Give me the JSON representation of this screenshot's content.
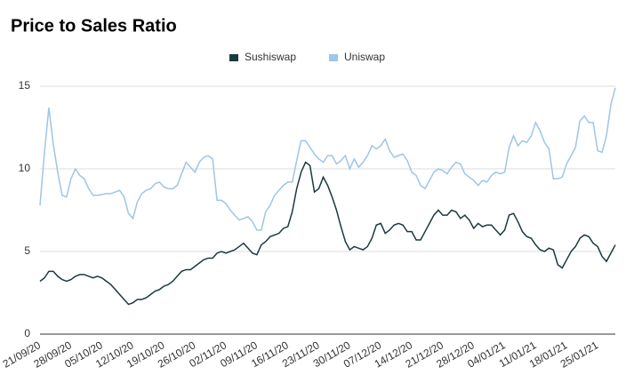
{
  "chart_data": {
    "type": "line",
    "title": "Price to Sales Ratio",
    "categories": [
      "21/09/20",
      null,
      null,
      null,
      null,
      null,
      null,
      "28/09/20",
      null,
      null,
      null,
      null,
      null,
      null,
      "05/10/20",
      null,
      null,
      null,
      null,
      null,
      null,
      "12/10/20",
      null,
      null,
      null,
      null,
      null,
      null,
      "19/10/20",
      null,
      null,
      null,
      null,
      null,
      null,
      "26/10/20",
      null,
      null,
      null,
      null,
      null,
      null,
      "02/11/20",
      null,
      null,
      null,
      null,
      null,
      null,
      "09/11/20",
      null,
      null,
      null,
      null,
      null,
      null,
      "16/11/20",
      null,
      null,
      null,
      null,
      null,
      null,
      "23/11/20",
      null,
      null,
      null,
      null,
      null,
      null,
      "30/11/20",
      null,
      null,
      null,
      null,
      null,
      null,
      "07/12/20",
      null,
      null,
      null,
      null,
      null,
      null,
      "14/12/20",
      null,
      null,
      null,
      null,
      null,
      null,
      "21/12/20",
      null,
      null,
      null,
      null,
      null,
      null,
      "28/12/20",
      null,
      null,
      null,
      null,
      null,
      null,
      "04/01/21",
      null,
      null,
      null,
      null,
      null,
      null,
      "11/01/21",
      null,
      null,
      null,
      null,
      null,
      null,
      "18/01/21",
      null,
      null,
      null,
      null,
      null,
      null,
      "25/01/21",
      null,
      null,
      null,
      null
    ],
    "series": [
      {
        "name": "Sushiswap",
        "color": "#1b3a3f",
        "values": [
          3.2,
          3.4,
          3.8,
          3.8,
          3.5,
          3.3,
          3.2,
          3.3,
          3.5,
          3.6,
          3.6,
          3.5,
          3.4,
          3.5,
          3.4,
          3.2,
          3.0,
          2.7,
          2.4,
          2.1,
          1.8,
          1.9,
          2.1,
          2.1,
          2.2,
          2.4,
          2.6,
          2.7,
          2.9,
          3.0,
          3.2,
          3.5,
          3.8,
          3.9,
          3.9,
          4.1,
          4.3,
          4.5,
          4.6,
          4.6,
          4.9,
          5.0,
          4.9,
          5.0,
          5.1,
          5.3,
          5.5,
          5.2,
          4.9,
          4.8,
          5.4,
          5.6,
          5.9,
          6.0,
          6.1,
          6.4,
          6.5,
          7.4,
          8.8,
          9.8,
          10.4,
          10.2,
          8.6,
          8.8,
          9.5,
          9.0,
          8.3,
          7.5,
          6.5,
          5.6,
          5.1,
          5.3,
          5.2,
          5.1,
          5.3,
          5.8,
          6.6,
          6.7,
          6.1,
          6.3,
          6.6,
          6.7,
          6.6,
          6.2,
          6.2,
          5.7,
          5.7,
          6.2,
          6.7,
          7.2,
          7.5,
          7.2,
          7.2,
          7.5,
          7.4,
          7.0,
          7.2,
          6.9,
          6.4,
          6.7,
          6.5,
          6.6,
          6.6,
          6.3,
          6.0,
          6.3,
          7.2,
          7.3,
          6.8,
          6.2,
          5.9,
          5.8,
          5.4,
          5.1,
          5.0,
          5.2,
          5.1,
          4.2,
          4.0,
          4.5,
          5.0,
          5.3,
          5.8,
          6.0,
          5.9,
          5.5,
          5.3,
          4.7,
          4.4,
          4.9,
          5.4
        ]
      },
      {
        "name": "Uniswap",
        "color": "#9fc5e8",
        "values": [
          7.8,
          11.0,
          13.7,
          11.5,
          9.8,
          8.4,
          8.3,
          9.4,
          10.0,
          9.6,
          9.4,
          8.8,
          8.4,
          8.4,
          8.45,
          8.5,
          8.5,
          8.6,
          8.7,
          8.3,
          7.3,
          7.0,
          8.0,
          8.5,
          8.7,
          8.8,
          9.1,
          9.2,
          8.9,
          8.8,
          8.8,
          9.0,
          9.7,
          10.4,
          10.1,
          9.8,
          10.4,
          10.7,
          10.8,
          10.6,
          8.1,
          8.1,
          7.9,
          7.5,
          7.2,
          6.9,
          7.0,
          7.1,
          6.8,
          6.3,
          6.3,
          7.4,
          7.8,
          8.4,
          8.7,
          9.0,
          9.2,
          9.2,
          10.5,
          11.7,
          11.7,
          11.3,
          10.9,
          10.6,
          10.4,
          10.8,
          10.8,
          10.3,
          10.5,
          10.8,
          10.0,
          10.6,
          10.1,
          10.4,
          10.8,
          11.4,
          11.2,
          11.4,
          11.8,
          11.1,
          10.7,
          10.8,
          10.9,
          10.5,
          9.8,
          9.6,
          9.0,
          8.8,
          9.3,
          9.8,
          10.0,
          9.9,
          9.7,
          10.1,
          10.4,
          10.3,
          9.7,
          9.5,
          9.3,
          9.0,
          9.3,
          9.2,
          9.6,
          9.8,
          9.7,
          9.8,
          11.3,
          12.0,
          11.4,
          11.7,
          11.6,
          12.0,
          12.8,
          12.3,
          11.6,
          11.2,
          9.4,
          9.4,
          9.5,
          10.3,
          10.8,
          11.3,
          12.9,
          13.2,
          12.8,
          12.8,
          11.1,
          11.0,
          12.0,
          13.9,
          14.9
        ]
      }
    ],
    "ylim": [
      0,
      15
    ],
    "yticks": [
      0,
      5,
      10,
      15
    ],
    "grid": true,
    "legend": "top"
  }
}
